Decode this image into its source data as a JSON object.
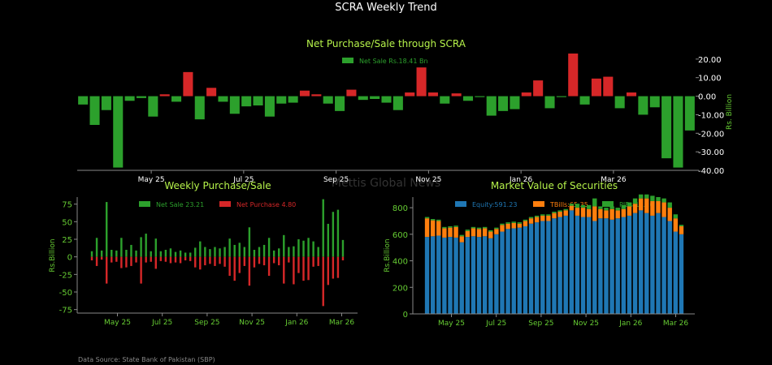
{
  "page": {
    "title": "SCRA Weekly Trend",
    "watermark": "Mettis Global News",
    "source": "Data Source: State Bank of Pakistan (SBP)"
  },
  "colors": {
    "green": "#2ca02c",
    "red": "#d62728",
    "blue": "#1f77b4",
    "orange": "#ff7f0e",
    "title_lime": "#b5f24a",
    "tick_green": "#66cc33"
  },
  "chart_data": [
    {
      "type": "bar",
      "title": "Net Purchase/Sale through SCRA",
      "ylabel": "Rs. Billion",
      "ylim": [
        -40,
        23
      ],
      "yticks": [
        "20.00",
        "10.00",
        "0.00",
        "-10.00",
        "-20.00",
        "-30.00",
        "-40.00"
      ],
      "xticks": [
        "May 25",
        "Jul 25",
        "Sep 25",
        "Nov 25",
        "Jan 26",
        "Mar 26"
      ],
      "legend": "Net Sale Rs.18.41 Bn",
      "legend_position": "top-center",
      "values": [
        -4.5,
        -15.5,
        -7.5,
        -38.5,
        -2.5,
        -1,
        -11,
        1,
        -3,
        13,
        -12.5,
        4.5,
        -3,
        -9.5,
        -5.5,
        -5,
        -11,
        -4,
        -3.5,
        3,
        1,
        -4,
        -8,
        3.5,
        -2,
        -1.5,
        -3.5,
        -7.5,
        2,
        15.5,
        2,
        -4,
        1.5,
        -2.5,
        -0.5,
        -10.5,
        -8,
        -7,
        2,
        8.5,
        -6.5,
        -0.5,
        23,
        -4.5,
        9.5,
        10.5,
        -6.5,
        2,
        -10,
        -6,
        -33.5,
        -38.5,
        -18.5
      ]
    },
    {
      "type": "bar",
      "title": "Weekly Purchase/Sale",
      "ylabel": "Rs.Billion",
      "ylim": [
        -80,
        85
      ],
      "yticks": [
        "75",
        "50",
        "25",
        "0",
        "-25",
        "-50",
        "-75"
      ],
      "xticks": [
        "May 25",
        "Jul 25",
        "Sep 25",
        "Nov 25",
        "Jan 26",
        "Mar 26"
      ],
      "series": [
        {
          "name": "Net Sale 23.21",
          "values": [
            8,
            27,
            9,
            78,
            10,
            9,
            27,
            10,
            17,
            9,
            28,
            33,
            8,
            26,
            8,
            10,
            12,
            7,
            9,
            6,
            6,
            13,
            22,
            14,
            11,
            14,
            12,
            14,
            26,
            17,
            20,
            14,
            42,
            10,
            14,
            17,
            27,
            9,
            12,
            31,
            14,
            15,
            25,
            23,
            27,
            22,
            14,
            82,
            47,
            64,
            67,
            24
          ]
        },
        {
          "name": "Net Purchase 4.80",
          "values": [
            -5,
            -13,
            -4,
            -38,
            -8,
            -7,
            -16,
            -15,
            -13,
            -8,
            -38,
            -8,
            -7,
            -17,
            -6,
            -7,
            -9,
            -8,
            -9,
            -5,
            -6,
            -15,
            -18,
            -12,
            -10,
            -13,
            -10,
            -14,
            -27,
            -34,
            -23,
            -13,
            -41,
            -15,
            -10,
            -12,
            -27,
            -9,
            -12,
            -38,
            -8,
            -39,
            -23,
            -34,
            -33,
            -14,
            -13,
            -70,
            -40,
            -31,
            -30,
            -5
          ]
        }
      ]
    },
    {
      "type": "bar",
      "title": "Market Value of Securities",
      "ylabel": "Rs.Billion",
      "ylim": [
        0,
        880
      ],
      "yticks": [
        "800",
        "600",
        "400",
        "200",
        "0"
      ],
      "xticks": [
        "May 25",
        "Jul 25",
        "Sep 25",
        "Nov 25",
        "Jan 26",
        "Mar 26"
      ],
      "stacked": true,
      "series": [
        {
          "name": "Equity:591.23",
          "values": [
            580,
            585,
            590,
            575,
            580,
            575,
            540,
            580,
            585,
            580,
            585,
            570,
            600,
            620,
            640,
            645,
            650,
            660,
            680,
            690,
            700,
            700,
            720,
            730,
            740,
            780,
            740,
            730,
            730,
            700,
            720,
            720,
            710,
            720,
            730,
            740,
            760,
            780,
            760,
            740,
            760,
            730,
            700,
            620,
            600
          ]
        },
        {
          "name": "TBills:65.35",
          "values": [
            140,
            120,
            110,
            70,
            70,
            80,
            45,
            45,
            60,
            60,
            60,
            50,
            40,
            50,
            40,
            40,
            30,
            40,
            40,
            40,
            40,
            40,
            40,
            40,
            40,
            35,
            60,
            70,
            60,
            110,
            70,
            60,
            80,
            60,
            60,
            70,
            70,
            90,
            110,
            110,
            90,
            110,
            100,
            100,
            60
          ]
        },
        {
          "name": "PIBs:11.26",
          "values": [
            10,
            10,
            10,
            10,
            10,
            10,
            10,
            10,
            10,
            10,
            10,
            10,
            10,
            10,
            10,
            10,
            10,
            10,
            10,
            10,
            10,
            10,
            10,
            10,
            10,
            15,
            30,
            20,
            30,
            60,
            20,
            20,
            20,
            20,
            30,
            30,
            40,
            30,
            30,
            40,
            30,
            30,
            40,
            30,
            11
          ]
        }
      ]
    }
  ]
}
